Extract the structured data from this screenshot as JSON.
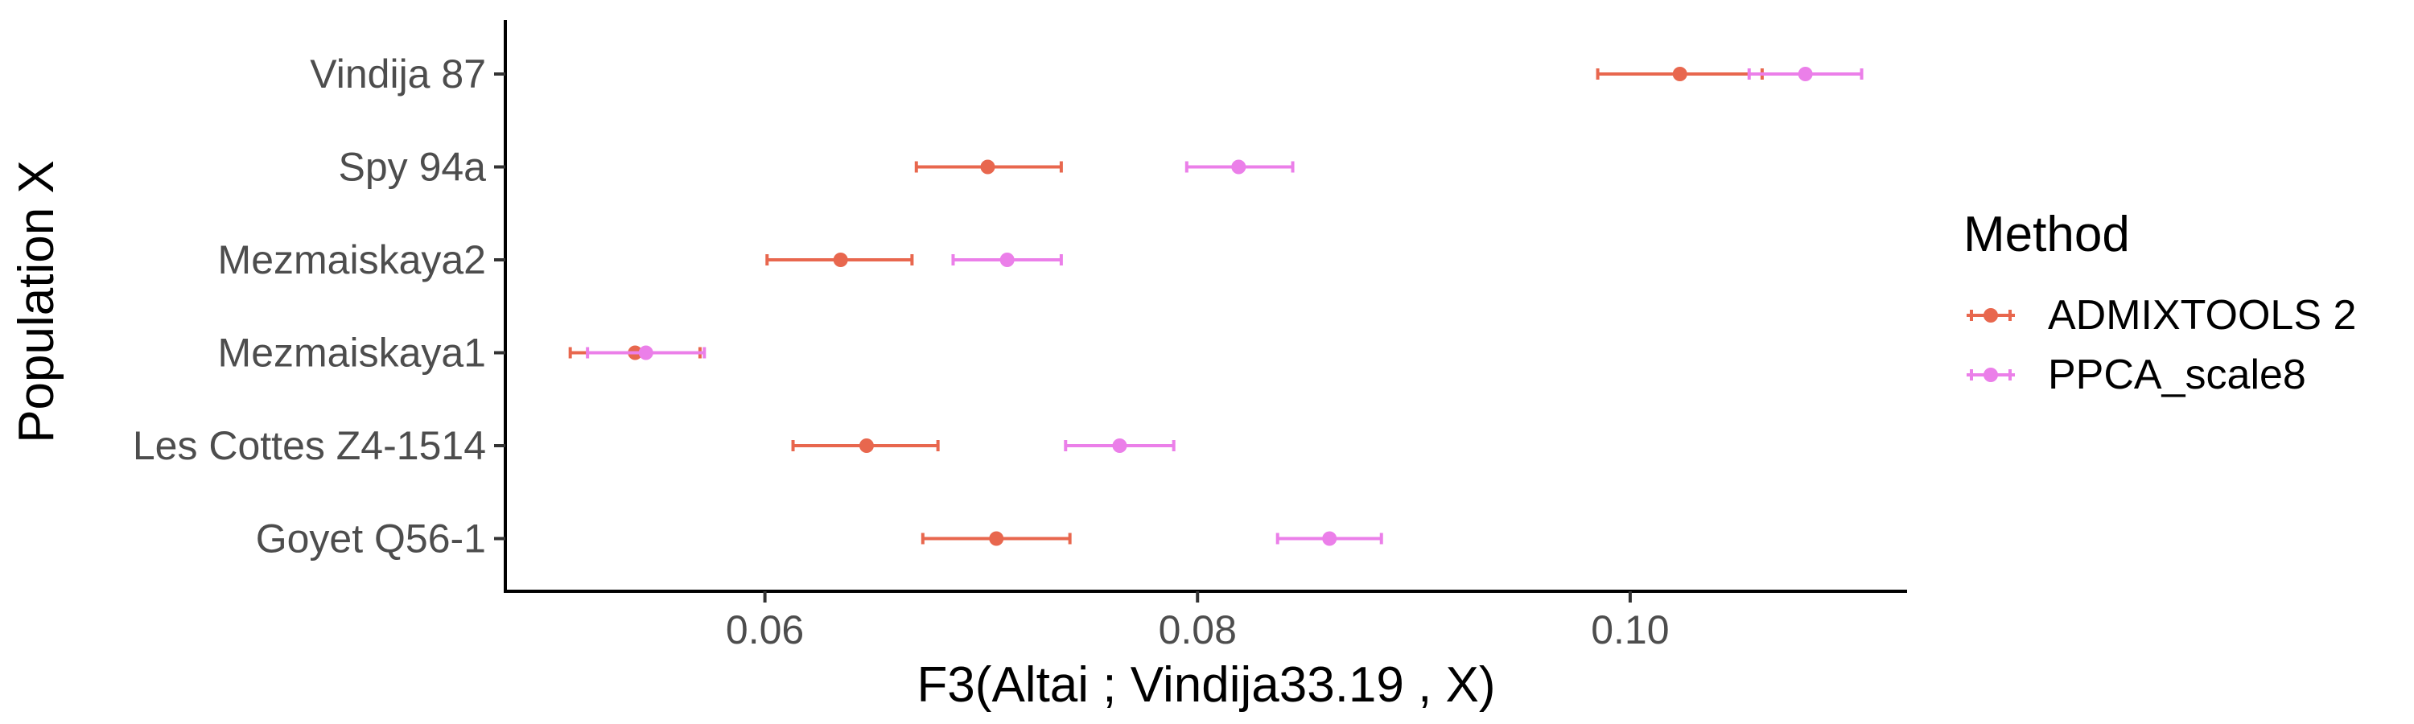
{
  "chart_data": {
    "type": "scatter",
    "subtype": "dot-with-error-bars",
    "orientation": "horizontal",
    "xlabel": "F3(Altai ; Vindija33.19 , X)",
    "ylabel": "Population X",
    "categories": [
      "Vindija 87",
      "Spy 94a",
      "Mezmaiskaya2",
      "Mezmaiskaya1",
      "Les Cottes Z4-1514",
      "Goyet Q56-1"
    ],
    "xlim": [
      0.048,
      0.1128
    ],
    "xticks": [
      {
        "value": 0.06,
        "label": "0.06"
      },
      {
        "value": 0.08,
        "label": "0.08"
      },
      {
        "value": 0.1,
        "label": "0.10"
      }
    ],
    "grid": false,
    "legend": {
      "title": "Method",
      "placement": "right",
      "entries": [
        "ADMIXTOOLS 2",
        "PPCA_scale8"
      ]
    },
    "series": [
      {
        "name": "ADMIXTOOLS 2",
        "color": "#E8674E",
        "points": [
          {
            "category": "Vindija 87",
            "value": 0.1023,
            "low": 0.0985,
            "high": 0.1061
          },
          {
            "category": "Spy 94a",
            "value": 0.0703,
            "low": 0.067,
            "high": 0.0737
          },
          {
            "category": "Mezmaiskaya2",
            "value": 0.0635,
            "low": 0.0601,
            "high": 0.0668
          },
          {
            "category": "Mezmaiskaya1",
            "value": 0.054,
            "low": 0.051,
            "high": 0.057
          },
          {
            "category": "Les Cottes Z4-1514",
            "value": 0.0647,
            "low": 0.0613,
            "high": 0.068
          },
          {
            "category": "Goyet Q56-1",
            "value": 0.0707,
            "low": 0.0673,
            "high": 0.0741
          }
        ]
      },
      {
        "name": "PPCA_scale8",
        "color": "#EB7FE9",
        "points": [
          {
            "category": "Vindija 87",
            "value": 0.1081,
            "low": 0.1055,
            "high": 0.1107
          },
          {
            "category": "Spy 94a",
            "value": 0.0819,
            "low": 0.0795,
            "high": 0.0844
          },
          {
            "category": "Mezmaiskaya2",
            "value": 0.0712,
            "low": 0.0687,
            "high": 0.0737
          },
          {
            "category": "Mezmaiskaya1",
            "value": 0.0545,
            "low": 0.0518,
            "high": 0.0572
          },
          {
            "category": "Les Cottes Z4-1514",
            "value": 0.0764,
            "low": 0.0739,
            "high": 0.0789
          },
          {
            "category": "Goyet Q56-1",
            "value": 0.0861,
            "low": 0.0837,
            "high": 0.0885
          }
        ]
      }
    ]
  }
}
